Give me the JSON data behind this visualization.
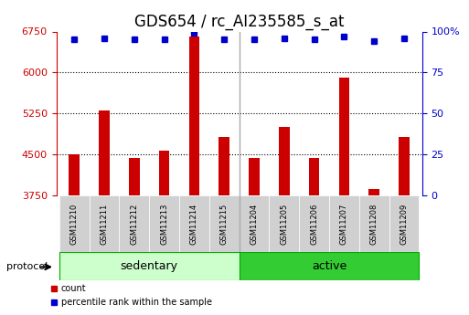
{
  "title": "GDS654 / rc_AI235585_s_at",
  "samples": [
    "GSM11210",
    "GSM11211",
    "GSM11212",
    "GSM11213",
    "GSM11214",
    "GSM11215",
    "GSM11204",
    "GSM11205",
    "GSM11206",
    "GSM11207",
    "GSM11208",
    "GSM11209"
  ],
  "counts": [
    4500,
    5300,
    4440,
    4560,
    6650,
    4820,
    4430,
    5000,
    4430,
    5900,
    3870,
    4820
  ],
  "percentiles": [
    95,
    96,
    95,
    95,
    99,
    95,
    95,
    96,
    95,
    97,
    94,
    96
  ],
  "ylim_left": [
    3750,
    6750
  ],
  "ylim_right": [
    0,
    100
  ],
  "yticks_left": [
    3750,
    4500,
    5250,
    6000,
    6750
  ],
  "yticks_right": [
    0,
    25,
    50,
    75,
    100
  ],
  "bar_color": "#cc0000",
  "dot_color": "#0000cc",
  "group1_label": "sedentary",
  "group2_label": "active",
  "group1_indices": [
    0,
    1,
    2,
    3,
    4,
    5
  ],
  "group2_indices": [
    6,
    7,
    8,
    9,
    10,
    11
  ],
  "group1_color": "#ccffcc",
  "group2_color": "#33cc33",
  "separator_after": 5,
  "legend_count_label": "count",
  "legend_pct_label": "percentile rank within the sample",
  "protocol_label": "protocol",
  "title_fontsize": 12,
  "tick_fontsize": 8,
  "label_fontsize": 9
}
